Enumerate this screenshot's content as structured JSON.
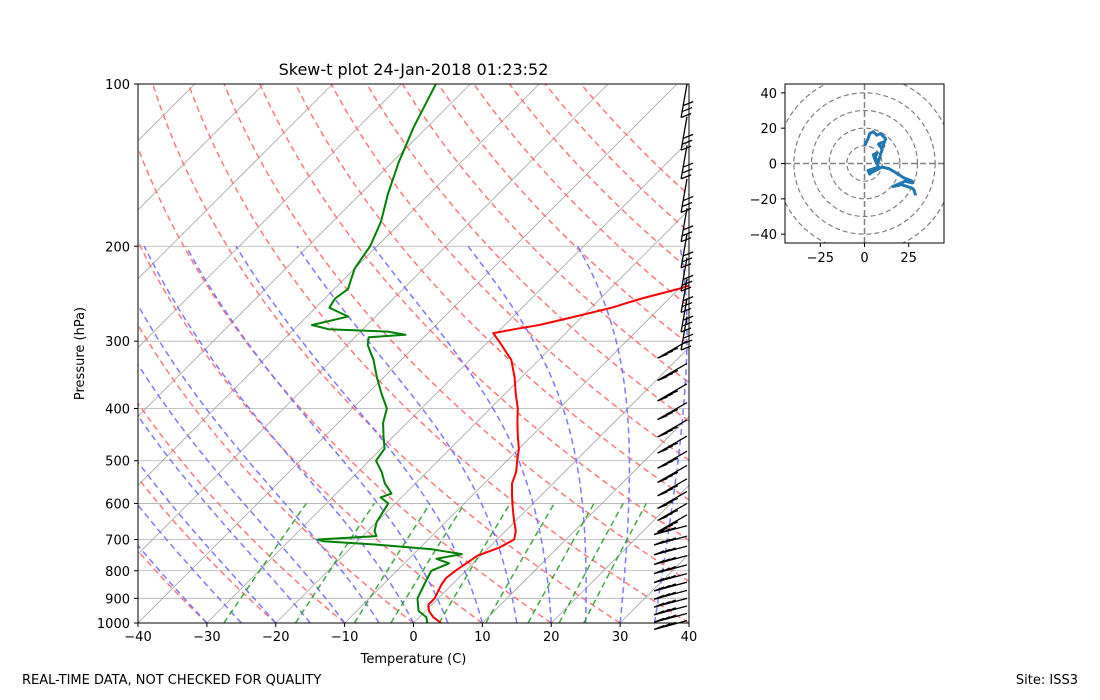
{
  "footer": {
    "disclaimer": "REAL-TIME DATA, NOT CHECKED FOR QUALITY",
    "site": "Site: ISS3"
  },
  "chart_data": [
    {
      "type": "skew-t",
      "title": "Skew-t plot 24-Jan-2018 01:23:52",
      "xlabel": "Temperature (C)",
      "ylabel": "Pressure (hPa)",
      "xlim": [
        -40,
        40
      ],
      "ylim": [
        1000,
        100
      ],
      "y_scale": "log",
      "grid": true,
      "x_ticks": [
        -40,
        -30,
        -20,
        -10,
        0,
        10,
        20,
        30,
        40
      ],
      "x_tick_labels": [
        "−40",
        "−30",
        "−20",
        "−10",
        "0",
        "10",
        "20",
        "30",
        "40"
      ],
      "y_ticks": [
        1000,
        900,
        800,
        700,
        600,
        500,
        400,
        300,
        200,
        100
      ],
      "y_tick_labels": [
        "1000",
        "900",
        "800",
        "700",
        "600",
        "500",
        "400",
        "300",
        "200",
        "100"
      ],
      "colors": {
        "temperature": "#ff0000",
        "dewpoint": "#008000",
        "dry_adiabats": "#ff6b6b",
        "moist_adiabats": "#6b6bff",
        "mixing_ratio": "#2ca02c",
        "isotherms": "#a6a6a6",
        "barbs": "#000000"
      },
      "series": [
        {
          "role": "temperature",
          "points": [
            [
              1000,
              4.0
            ],
            [
              975,
              2.0
            ],
            [
              950,
              0.5
            ],
            [
              925,
              -0.5
            ],
            [
              900,
              -0.5
            ],
            [
              875,
              -1.0
            ],
            [
              850,
              -1.5
            ],
            [
              825,
              -1.8
            ],
            [
              800,
              -1.5
            ],
            [
              775,
              -1.0
            ],
            [
              750,
              -0.5
            ],
            [
              725,
              1.5
            ],
            [
              700,
              2.5
            ],
            [
              675,
              1.5
            ],
            [
              650,
              0.0
            ],
            [
              625,
              -1.5
            ],
            [
              600,
              -3.0
            ],
            [
              575,
              -4.5
            ],
            [
              550,
              -6.0
            ],
            [
              525,
              -7.0
            ],
            [
              500,
              -8.5
            ],
            [
              475,
              -10.0
            ],
            [
              450,
              -12.0
            ],
            [
              425,
              -14.0
            ],
            [
              400,
              -16.0
            ],
            [
              375,
              -18.5
            ],
            [
              350,
              -21.0
            ],
            [
              325,
              -24.0
            ],
            [
              300,
              -28.5
            ],
            [
              290,
              -30.5
            ],
            [
              285,
              -28.0
            ],
            [
              280,
              -25.0
            ],
            [
              270,
              -21.0
            ],
            [
              260,
              -17.0
            ],
            [
              250,
              -14.0
            ],
            [
              240,
              -10.0
            ],
            [
              230,
              -7.0
            ],
            [
              220,
              -4.5
            ],
            [
              210,
              -2.5
            ],
            [
              200,
              -1.5
            ],
            [
              190,
              -2.0
            ],
            [
              180,
              -2.5
            ],
            [
              170,
              -2.5
            ],
            [
              160,
              -2.5
            ],
            [
              150,
              -3.0
            ],
            [
              140,
              -4.5
            ],
            [
              130,
              -5.0
            ],
            [
              120,
              -6.0
            ],
            [
              110,
              -7.5
            ],
            [
              105,
              -8.5
            ],
            [
              100,
              -9.0
            ]
          ]
        },
        {
          "role": "dewpoint",
          "points": [
            [
              1000,
              2.0
            ],
            [
              975,
              1.0
            ],
            [
              950,
              -1.0
            ],
            [
              925,
              -2.0
            ],
            [
              900,
              -3.0
            ],
            [
              850,
              -4.0
            ],
            [
              825,
              -4.5
            ],
            [
              800,
              -5.0
            ],
            [
              775,
              -3.5
            ],
            [
              760,
              -6.0
            ],
            [
              745,
              -3.0
            ],
            [
              730,
              -8.0
            ],
            [
              715,
              -17.0
            ],
            [
              705,
              -25.0
            ],
            [
              700,
              -26.0
            ],
            [
              690,
              -18.0
            ],
            [
              675,
              -19.0
            ],
            [
              650,
              -20.0
            ],
            [
              625,
              -20.5
            ],
            [
              600,
              -21.0
            ],
            [
              585,
              -23.0
            ],
            [
              575,
              -22.0
            ],
            [
              550,
              -24.5
            ],
            [
              525,
              -26.5
            ],
            [
              500,
              -29.0
            ],
            [
              475,
              -29.5
            ],
            [
              450,
              -31.5
            ],
            [
              425,
              -33.5
            ],
            [
              400,
              -35.0
            ],
            [
              375,
              -38.0
            ],
            [
              350,
              -41.0
            ],
            [
              325,
              -44.0
            ],
            [
              305,
              -47.0
            ],
            [
              295,
              -48.0
            ],
            [
              292,
              -43.0
            ],
            [
              288,
              -46.0
            ],
            [
              285,
              -55.0
            ],
            [
              280,
              -58.0
            ],
            [
              275,
              -56.0
            ],
            [
              270,
              -54.0
            ],
            [
              265,
              -56.0
            ],
            [
              260,
              -58.0
            ],
            [
              250,
              -58.5
            ],
            [
              240,
              -58.0
            ],
            [
              230,
              -59.0
            ],
            [
              220,
              -60.0
            ],
            [
              210,
              -60.5
            ],
            [
              200,
              -61.0
            ],
            [
              180,
              -63.0
            ],
            [
              160,
              -66.0
            ],
            [
              140,
              -69.0
            ],
            [
              120,
              -72.0
            ],
            [
              100,
              -75.0
            ]
          ]
        }
      ],
      "wind_barbs_hpa": [
        100,
        115,
        130,
        150,
        170,
        190,
        210,
        230,
        250,
        270,
        300,
        330,
        360,
        390,
        420,
        450,
        480,
        510,
        540,
        570,
        600,
        630,
        660,
        690,
        720,
        750,
        780,
        810,
        840,
        870,
        900,
        930,
        960,
        990
      ]
    },
    {
      "type": "hodograph",
      "xlim": [
        -45,
        45
      ],
      "ylim": [
        -45,
        45
      ],
      "x_ticks": [
        -25,
        0,
        25
      ],
      "x_tick_labels": [
        "−25",
        "0",
        "25"
      ],
      "y_ticks": [
        -40,
        -20,
        0,
        20,
        40
      ],
      "y_tick_labels": [
        "−40",
        "−20",
        "0",
        "20",
        "40"
      ],
      "rings": [
        10,
        20,
        30,
        40,
        50
      ],
      "colors": {
        "trace": "#1f77b4",
        "rings": "#808080"
      },
      "points": [
        [
          29,
          -18
        ],
        [
          28,
          -15
        ],
        [
          27,
          -14
        ],
        [
          21,
          -12
        ],
        [
          16,
          -13
        ],
        [
          23,
          -10
        ],
        [
          27,
          -11
        ],
        [
          27,
          -10
        ],
        [
          22,
          -8
        ],
        [
          19,
          -6
        ],
        [
          14,
          -3
        ],
        [
          10,
          -2
        ],
        [
          6,
          -4
        ],
        [
          4,
          -5
        ],
        [
          3,
          -6
        ],
        [
          2,
          -4
        ],
        [
          5,
          -3
        ],
        [
          8,
          -2
        ],
        [
          6,
          2
        ],
        [
          5,
          5
        ],
        [
          7,
          6
        ],
        [
          6,
          3
        ],
        [
          8,
          1
        ],
        [
          9,
          5
        ],
        [
          10,
          8
        ],
        [
          8,
          11
        ],
        [
          10,
          12
        ],
        [
          11,
          10
        ],
        [
          10,
          9
        ],
        [
          12,
          14
        ],
        [
          9,
          17
        ],
        [
          7,
          16
        ],
        [
          5,
          18
        ],
        [
          3,
          17
        ],
        [
          2,
          14
        ],
        [
          0,
          10
        ]
      ]
    }
  ]
}
